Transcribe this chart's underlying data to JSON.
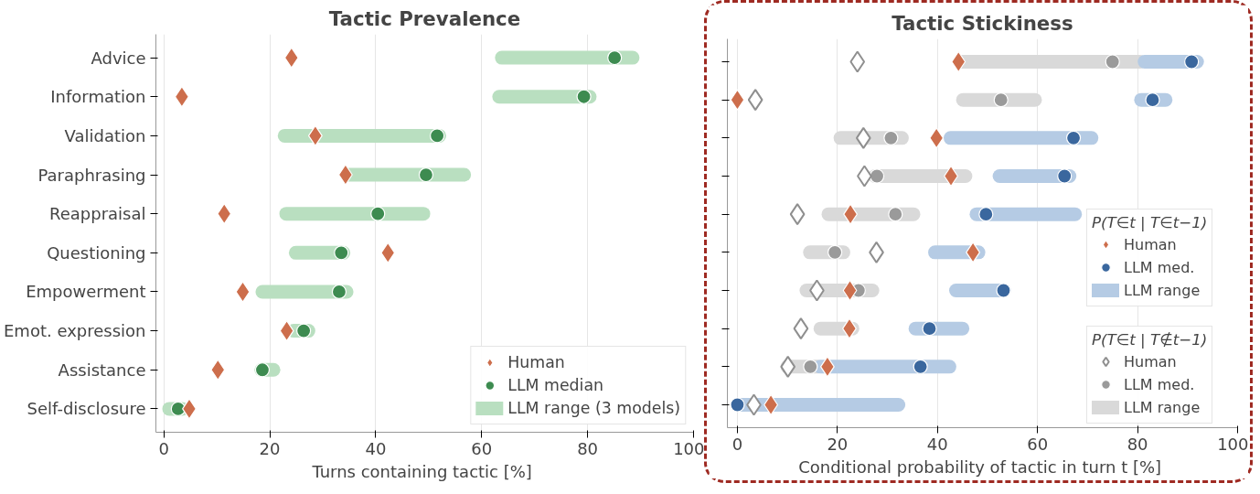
{
  "chart_data": [
    {
      "type": "scatter",
      "title": "Tactic Prevalence",
      "xlabel": "Turns containing tactic  [%]",
      "orientation": "horizontal",
      "categories": [
        "Advice",
        "Information",
        "Validation",
        "Paraphrasing",
        "Reappraisal",
        "Questioning",
        "Empowerment",
        "Emot. expression",
        "Assistance",
        "Self-disclosure"
      ],
      "xlim": [
        -1.5,
        100
      ],
      "xticks": [
        0,
        20,
        40,
        60,
        80,
        100
      ],
      "grid": "x",
      "legend": "bottom right",
      "series": [
        {
          "name": "Human",
          "marker": "diamond",
          "color": "#cd6e4c",
          "values": [
            24.1,
            3.4,
            28.6,
            34.3,
            11.4,
            42.3,
            14.9,
            23.2,
            10.2,
            4.8
          ]
        },
        {
          "name": "LLM median",
          "marker": "circle",
          "color": "#3d8b50",
          "values": [
            85.1,
            79.3,
            51.6,
            49.5,
            40.4,
            33.5,
            33.1,
            26.4,
            18.6,
            2.7
          ]
        },
        {
          "name": "LLM range (3 models)",
          "type": "bar",
          "color": "#b9dfc0",
          "base": [
            63.8,
            63.3,
            22.8,
            35.0,
            23.1,
            24.9,
            18.6,
            24.5,
            18.4,
            1.0
          ],
          "values": [
            24.7,
            17.1,
            29.2,
            21.7,
            25.9,
            9.0,
            15.9,
            2.8,
            2.3,
            2.5
          ]
        }
      ]
    },
    {
      "type": "scatter",
      "title": "Tactic Stickiness",
      "xlabel": "Conditional probability of tactic in turn t  [%]",
      "orientation": "horizontal",
      "categories": [
        null,
        null,
        null,
        null,
        null,
        null,
        null,
        null,
        null,
        null
      ],
      "xlim": [
        -2,
        100
      ],
      "xticks": [
        0,
        20,
        40,
        60,
        80,
        100
      ],
      "grid": "x",
      "legend": "bottom right",
      "tick_labels": "x",
      "legend_title": [
        "P(T∈t | T∈t−1)",
        "P(T∈t | T∉t−1)"
      ],
      "series": [
        {
          "name": "Human",
          "marker": "diamond",
          "color": "#cd6e4c",
          "values": [
            44.2,
            0,
            39.8,
            42.7,
            22.6,
            47.1,
            22.5,
            22.4,
            18.0,
            6.7
          ]
        },
        {
          "name": "LLM med.",
          "marker": "circle",
          "color": "#3a679e",
          "values": [
            90.8,
            83.0,
            67.2,
            65.4,
            49.7,
            null,
            53.2,
            38.4,
            36.6,
            0
          ]
        },
        {
          "name": "LLM range",
          "type": "bar",
          "color": "#b5cbe4",
          "base": [
            81.4,
            80.7,
            42.6,
            52.4,
            47.8,
            39.5,
            43.7,
            35.6,
            16.6,
            0
          ],
          "values": [
            10.5,
            4.9,
            28.2,
            14.0,
            19.7,
            8.7,
            9.6,
            9.4,
            25.8,
            32.2
          ]
        },
        {
          "name": "Human",
          "marker": "diamond_open",
          "color": "#8f8f8f",
          "values": [
            24.0,
            3.6,
            25.2,
            25.4,
            12.0,
            27.8,
            15.9,
            12.7,
            10.1,
            3.3
          ]
        },
        {
          "name": "LLM med.",
          "marker": "circle",
          "color": "#9a9a9a",
          "values": [
            75.0,
            52.7,
            30.7,
            27.9,
            31.6,
            19.5,
            24.2,
            null,
            14.6,
            null
          ]
        },
        {
          "name": "LLM range",
          "type": "bar",
          "color": "#d9d9d9",
          "base": [
            44.5,
            45.1,
            20.6,
            27.5,
            18.2,
            14.5,
            13.8,
            16.6,
            10.0,
            null
          ],
          "values": [
            36.0,
            14.4,
            12.3,
            18.1,
            17.0,
            6.7,
            13.2,
            6.4,
            6.0,
            null
          ]
        }
      ]
    }
  ]
}
